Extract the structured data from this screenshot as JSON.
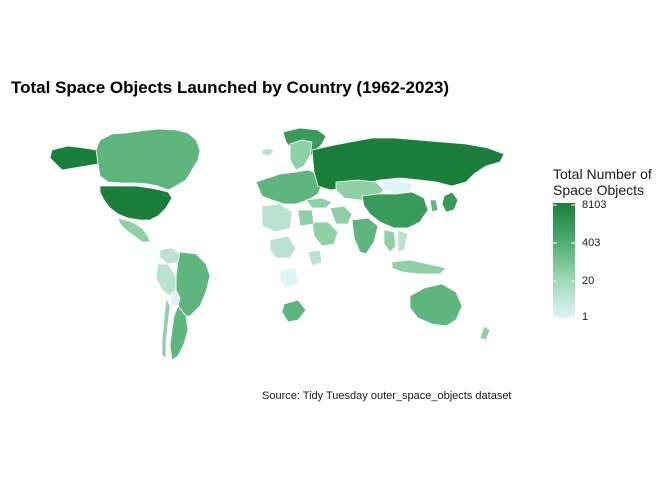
{
  "title": "Total Space Objects Launched by Country (1962-2023)",
  "caption": "Source: Tidy Tuesday outer_space_objects dataset",
  "legend": {
    "title_line1": "Total Number of",
    "title_line2": "Space Objects",
    "scale": "log",
    "ticks": [
      "8103",
      "403",
      "20",
      "1"
    ],
    "gradient": [
      "#e0f3f8",
      "#9fd8b5",
      "#4eae70",
      "#1a7f3a"
    ]
  },
  "colors": {
    "background": "#ffffff",
    "border": "#ffffff",
    "lowest": "#e0f3f8",
    "highest": "#1a7f3a"
  },
  "map_data": {
    "type": "choropleth",
    "value_label": "Total Number of Space Objects",
    "regions": [
      {
        "name": "United States",
        "level": 5
      },
      {
        "name": "Russia",
        "level": 5
      },
      {
        "name": "China",
        "level": 4
      },
      {
        "name": "Canada",
        "level": 3
      },
      {
        "name": "Greenland",
        "level": 4
      },
      {
        "name": "Mexico",
        "level": 2
      },
      {
        "name": "Brazil",
        "level": 3
      },
      {
        "name": "Argentina",
        "level": 3
      },
      {
        "name": "Peru",
        "level": 1
      },
      {
        "name": "Colombia",
        "level": 1
      },
      {
        "name": "Bolivia",
        "level": 0
      },
      {
        "name": "Chile",
        "level": 2
      },
      {
        "name": "Europe",
        "level": 3
      },
      {
        "name": "Scandinavia",
        "level": 2
      },
      {
        "name": "Kazakhstan",
        "level": 2
      },
      {
        "name": "Mongolia",
        "level": 0
      },
      {
        "name": "India",
        "level": 3
      },
      {
        "name": "Iran",
        "level": 2
      },
      {
        "name": "Saudi Arabia",
        "level": 2
      },
      {
        "name": "Egypt",
        "level": 2
      },
      {
        "name": "Algeria",
        "level": 1
      },
      {
        "name": "Nigeria",
        "level": 1
      },
      {
        "name": "Kenya",
        "level": 1
      },
      {
        "name": "Angola",
        "level": 0
      },
      {
        "name": "South Africa",
        "level": 3
      },
      {
        "name": "Indonesia",
        "level": 2
      },
      {
        "name": "Japan",
        "level": 4
      },
      {
        "name": "South Korea",
        "level": 3
      },
      {
        "name": "Thailand",
        "level": 2
      },
      {
        "name": "Vietnam",
        "level": 1
      },
      {
        "name": "Australia",
        "level": 3
      },
      {
        "name": "New Zealand",
        "level": 2
      }
    ]
  }
}
